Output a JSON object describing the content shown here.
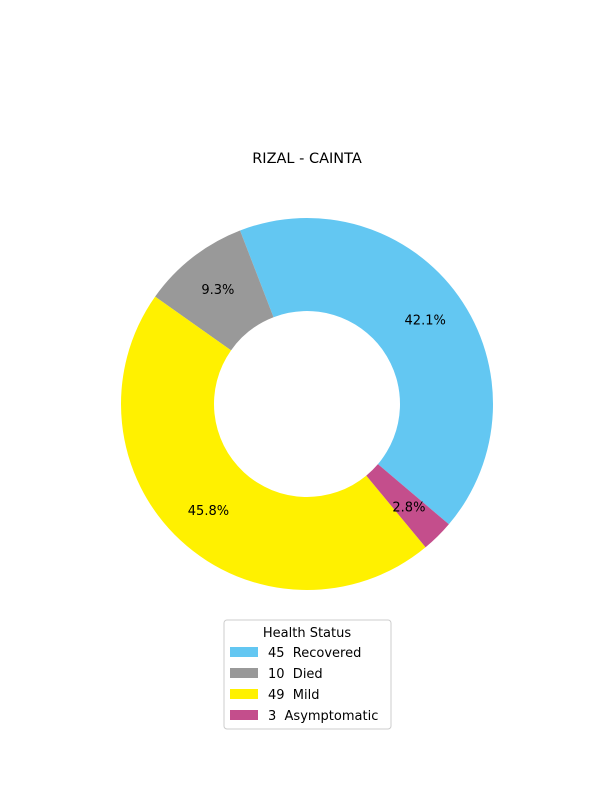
{
  "chart_data": {
    "type": "pie",
    "title": "RIZAL - CAINTA",
    "legend_title": "Health Status",
    "legend_position": "bottom-center",
    "donut": true,
    "start_angle_deg": -40.3,
    "direction": "counterclockwise-from-start",
    "slices": [
      {
        "label": "45  Recovered",
        "value": 45,
        "percent_label": "42.1%",
        "color": "#63c7f2"
      },
      {
        "label": "10  Died",
        "value": 10,
        "percent_label": "9.3%",
        "color": "#999999"
      },
      {
        "label": "49  Mild",
        "value": 49,
        "percent_label": "45.8%",
        "color": "#fff100"
      },
      {
        "label": "3  Asymptomatic",
        "value": 3,
        "percent_label": "2.8%",
        "color": "#c44e8c"
      }
    ]
  }
}
